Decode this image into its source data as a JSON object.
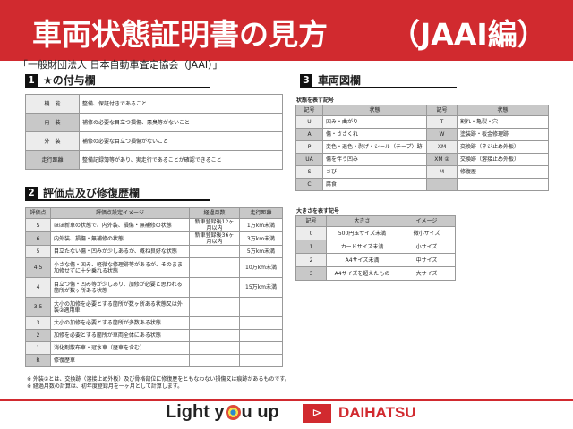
{
  "header": {
    "title": "車両状態証明書の見方",
    "edition": "（JAAI編）"
  },
  "subtitle": "「一般財団法人 日本自動車査定協会（JAAI）」",
  "colors": {
    "accent": "#d12a2f"
  },
  "section1": {
    "num": "1",
    "title": "★の付与欄",
    "rows": [
      {
        "k": "機　能",
        "v": "整備、保証付きであること"
      },
      {
        "k": "内　装",
        "v": "補修の必要な目立つ損傷、悪臭等がないこと"
      },
      {
        "k": "外　装",
        "v": "補修の必要な目立つ損傷がないこと"
      },
      {
        "k": "走行距離",
        "v": "整備記録簿等があり、実走行であることが確認できること"
      }
    ]
  },
  "section2": {
    "num": "2",
    "title": "評価点及び修復歴欄",
    "headers": [
      "評価点",
      "評価点設定イメージ",
      "経過月数",
      "走行距離"
    ],
    "rows": [
      [
        "S",
        "ほぼ新車の状態で、内外装、損傷・無補修の状態",
        "新車登録後12ヶ月以内",
        "1万km未満"
      ],
      [
        "6",
        "内外装、損傷・無補修の状態",
        "新車登録後36ヶ月以内",
        "3万km未満"
      ],
      [
        "5",
        "目立たない傷・凹みが少しあるが、概ね良好な状態",
        "",
        "5万km未満"
      ],
      [
        "4.5",
        "小さな傷・凹み、軽微な修理跡等があるが、そのまま加修せずに十分乗れる状態",
        "",
        "10万km未満"
      ],
      [
        "4",
        "目立つ傷・凹み等が少しあり、加修が必要と思われる箇所が数ヶ所ある状態",
        "",
        "15万km未満"
      ],
      [
        "3.5",
        "大小の加修を必要とする箇所が数ヶ所ある状態又は外装②適用車",
        "",
        ""
      ],
      [
        "3",
        "大小の加修を必要とする箇所が多数ある状態",
        "",
        ""
      ],
      [
        "2",
        "加修を必要とする箇所が車両全体にある状態",
        "",
        ""
      ],
      [
        "1",
        "消化剤散布車・冠水車（歴車を含む）",
        "",
        ""
      ],
      [
        "R",
        "修復歴車",
        "",
        ""
      ]
    ]
  },
  "section3": {
    "num": "3",
    "title": "車両図欄",
    "condition_label": "状態を表す記号",
    "condition_headers": [
      "記号",
      "状態",
      "記号",
      "状態"
    ],
    "condition_rows": [
      [
        "U",
        "凹み・曲がり",
        "T",
        "割れ・亀裂・穴"
      ],
      [
        "A",
        "傷・ささくれ",
        "W",
        "塗装跡・板金修理跡"
      ],
      [
        "P",
        "変色・退色・剥げ・シール（テープ）跡",
        "XM",
        "交換跡（ネジ止め外板）"
      ],
      [
        "UA",
        "傷を伴う凹み",
        "XM ②",
        "交換跡（溶接止め外板）"
      ],
      [
        "S",
        "さび",
        "M",
        "修復歴"
      ],
      [
        "C",
        "腐食",
        "",
        ""
      ]
    ],
    "size_label": "大きさを表す記号",
    "size_headers": [
      "記号",
      "大きさ",
      "イメージ"
    ],
    "size_rows": [
      [
        "0",
        "500円玉サイズ未満",
        "微小サイズ"
      ],
      [
        "1",
        "カードサイズ未満",
        "小サイズ"
      ],
      [
        "2",
        "A4サイズ未満",
        "中サイズ"
      ],
      [
        "3",
        "A4サイズを超えたもの",
        "大サイズ"
      ]
    ]
  },
  "notes": [
    "※ 外装②とは、交換跡（溶接止め外板）及び骨格部位に修復歴をともなわない損傷又は痕跡があるものです。",
    "※ 経過月数の計算は、初年度登録月を一ヶ月として計算します。"
  ],
  "footer": {
    "slogan_a": "Light y",
    "slogan_b": "u up",
    "brand": "DAIHATSU"
  }
}
